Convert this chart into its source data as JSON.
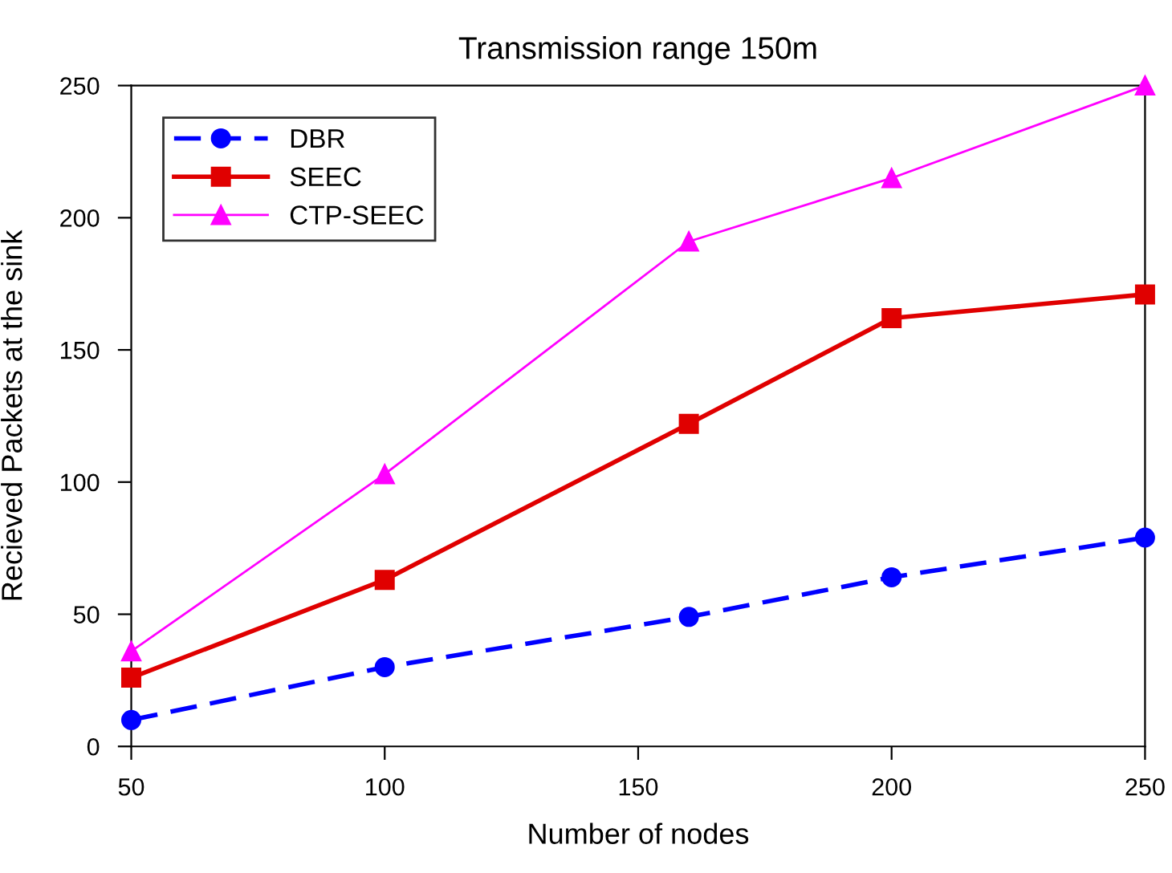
{
  "chart_data": {
    "type": "line",
    "title": "Transmission range 150m",
    "xlabel": "Number of nodes",
    "ylabel": "Recieved Packets at the sink",
    "x": [
      50,
      100,
      160,
      200,
      250
    ],
    "series": [
      {
        "name": "DBR",
        "color": "#0000ff",
        "values": [
          10,
          30,
          49,
          64,
          79
        ],
        "marker": "circle",
        "line_style": "dashed"
      },
      {
        "name": "SEEC",
        "color": "#e00000",
        "values": [
          26,
          63,
          122,
          162,
          171
        ],
        "marker": "square",
        "line_style": "solid"
      },
      {
        "name": "CTP-SEEC",
        "color": "#ff00ff",
        "values": [
          36,
          103,
          191,
          215,
          250
        ],
        "marker": "triangle",
        "line_style": "solid"
      }
    ],
    "xlim": [
      50,
      250
    ],
    "xticks": [
      50,
      100,
      150,
      200,
      250
    ],
    "ylim": [
      0,
      250
    ],
    "yticks": [
      0,
      50,
      100,
      150,
      200,
      250
    ],
    "grid": false,
    "legend": "top left"
  }
}
